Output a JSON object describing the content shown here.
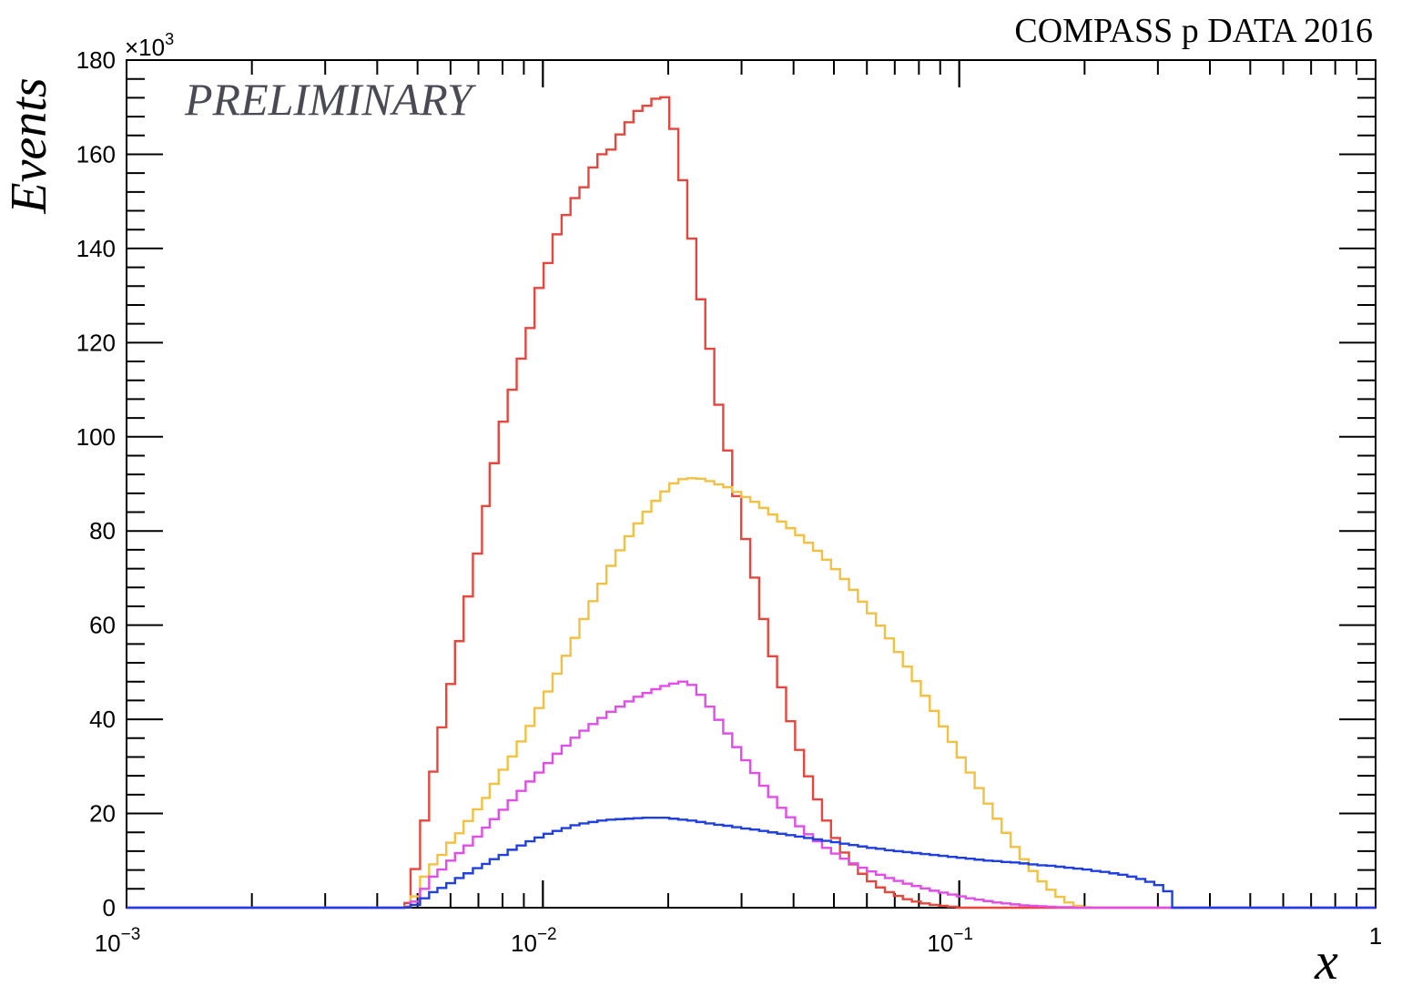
{
  "header": {
    "experiment_label": "COMPASS p DATA 2016",
    "preliminary_label": "PRELIMINARY"
  },
  "chart_data": {
    "type": "line",
    "title": "",
    "xlabel": "x",
    "ylabel": "Events",
    "y_multiplier_label": "×10",
    "y_multiplier_exponent": "3",
    "xscale": "log",
    "xlim": [
      0.001,
      1
    ],
    "ylim": [
      0,
      180
    ],
    "x_tick_labels": [
      {
        "x": 0.001,
        "base": "10",
        "exp": "−3"
      },
      {
        "x": 0.01,
        "base": "10",
        "exp": "−2"
      },
      {
        "x": 0.1,
        "base": "10",
        "exp": "−1"
      },
      {
        "x": 1,
        "base": "1",
        "exp": ""
      }
    ],
    "y_ticks": [
      0,
      20,
      40,
      60,
      80,
      100,
      120,
      140,
      160,
      180
    ],
    "legend": "none",
    "grid": false,
    "series": [
      {
        "color": "#e8453c",
        "x": [
          0.00465,
          0.00481,
          0.00507,
          0.00533,
          0.00558,
          0.00586,
          0.00615,
          0.00645,
          0.00679,
          0.00714,
          0.00745,
          0.00783,
          0.00823,
          0.00865,
          0.00909,
          0.00955,
          0.01004,
          0.01055,
          0.01109,
          0.01165,
          0.01224,
          0.01287,
          0.01352,
          0.01421,
          0.01494,
          0.0157,
          0.0165,
          0.01734,
          0.01822,
          0.01915,
          0.02012,
          0.02115,
          0.02222,
          0.02336,
          0.02455,
          0.0258,
          0.02711,
          0.02849,
          0.02994,
          0.03147,
          0.03307,
          0.03475,
          0.03652,
          0.03838,
          0.04034,
          0.04239,
          0.04455,
          0.04682,
          0.0492,
          0.05171,
          0.05434,
          0.0571,
          0.06001,
          0.06307,
          0.06628,
          0.06965,
          0.0732,
          0.07693,
          0.08085,
          0.08496,
          0.08929,
          0.09383,
          0.09861,
          0.10363,
          0.1089,
          0.11445,
          0.12027,
          0.12639,
          0.13283,
          0.13959,
          0.14669,
          0.15416,
          0.16201,
          0.17026,
          0.17892,
          0.18803,
          0.1976,
          0.20766,
          0.21823,
          0.22934,
          0.24101,
          0.25328,
          0.26617,
          0.27972,
          0.29396,
          0.30892,
          0.32465,
          0.34117,
          0.35854,
          0.37679,
          0.39597
        ],
        "values": [
          1.0,
          8.2,
          18.5,
          28.9,
          38.3,
          47.5,
          56.6,
          66.1,
          75.2,
          85.3,
          94.4,
          103.2,
          110.0,
          116.6,
          123.1,
          131.6,
          136.9,
          143.0,
          147.1,
          150.7,
          153.0,
          157.2,
          160.0,
          161.0,
          164.2,
          166.8,
          169.2,
          170.3,
          171.8,
          172.1,
          165.4,
          154.5,
          142.1,
          129.2,
          118.7,
          106.8,
          97.1,
          87.4,
          78.3,
          70.1,
          61.3,
          53.4,
          46.8,
          39.6,
          33.5,
          27.9,
          23.0,
          18.5,
          14.8,
          11.7,
          9.2,
          7.2,
          5.6,
          4.3,
          3.3,
          2.5,
          1.8,
          1.3,
          0.9,
          0.6,
          0.4,
          0.2,
          0.0,
          0.0,
          0.0,
          0.0,
          0.0,
          0.0,
          0.0,
          0.0,
          0.0,
          0.0,
          0.0,
          0.0,
          0.0,
          0.0,
          0.0,
          0.0,
          0.0,
          0.0,
          0.0,
          0.0,
          0.0,
          0.0,
          0.0,
          0.0,
          0.0,
          0.0,
          0.0,
          0.0,
          0.0
        ]
      },
      {
        "color": "#f4c042",
        "x": [
          0.00465,
          0.00481,
          0.00507,
          0.00533,
          0.00558,
          0.00586,
          0.00615,
          0.00645,
          0.00679,
          0.00714,
          0.00745,
          0.00783,
          0.00823,
          0.00865,
          0.00909,
          0.00955,
          0.01004,
          0.01055,
          0.01109,
          0.01165,
          0.01224,
          0.01287,
          0.01352,
          0.01421,
          0.01494,
          0.0157,
          0.0165,
          0.01734,
          0.01822,
          0.01915,
          0.02012,
          0.02115,
          0.02222,
          0.02336,
          0.02455,
          0.0258,
          0.02711,
          0.02849,
          0.02994,
          0.03147,
          0.03307,
          0.03475,
          0.03652,
          0.03838,
          0.04034,
          0.04239,
          0.04455,
          0.04682,
          0.0492,
          0.05171,
          0.05434,
          0.0571,
          0.06001,
          0.06307,
          0.06628,
          0.06965,
          0.0732,
          0.07693,
          0.08085,
          0.08496,
          0.08929,
          0.09383,
          0.09861,
          0.10363,
          0.1089,
          0.11445,
          0.12027,
          0.12639,
          0.13283,
          0.13959,
          0.14669,
          0.15416,
          0.16201,
          0.17026,
          0.17892,
          0.18803,
          0.1976,
          0.20766,
          0.21823,
          0.22934,
          0.24101,
          0.25328,
          0.26617,
          0.27972,
          0.29396,
          0.30892,
          0.32465,
          0.34117,
          0.35854,
          0.37679,
          0.39597
        ],
        "values": [
          0.3,
          2.4,
          6.6,
          9.2,
          11.2,
          13.8,
          15.8,
          18.4,
          20.9,
          23.3,
          26.3,
          29.3,
          32.1,
          35.3,
          38.6,
          42.4,
          45.9,
          49.7,
          53.5,
          57.3,
          61.3,
          65.1,
          68.8,
          72.6,
          75.9,
          78.9,
          81.6,
          84.1,
          86.4,
          88.4,
          90.1,
          91.0,
          91.2,
          91.1,
          90.6,
          89.9,
          89.3,
          88.3,
          87.2,
          86.2,
          84.9,
          83.5,
          82.0,
          80.6,
          79.1,
          77.5,
          75.8,
          73.9,
          71.9,
          69.8,
          67.5,
          65.0,
          62.5,
          59.9,
          57.2,
          54.3,
          51.2,
          48.1,
          45.0,
          41.8,
          38.5,
          35.2,
          31.9,
          28.7,
          25.4,
          22.1,
          18.9,
          15.9,
          12.9,
          10.3,
          7.8,
          5.6,
          3.8,
          2.3,
          1.1,
          0.4,
          0.1,
          0.0,
          0.0,
          0.0,
          0.0,
          0.0,
          0.0,
          0.0,
          0.0,
          0.0,
          0.0,
          0.0,
          0.0,
          0.0,
          0.0
        ]
      },
      {
        "color": "#e24ce8",
        "x": [
          0.00465,
          0.00481,
          0.00507,
          0.00533,
          0.00558,
          0.00586,
          0.00615,
          0.00645,
          0.00679,
          0.00714,
          0.00745,
          0.00783,
          0.00823,
          0.00865,
          0.00909,
          0.00955,
          0.01004,
          0.01055,
          0.01109,
          0.01165,
          0.01224,
          0.01287,
          0.01352,
          0.01421,
          0.01494,
          0.0157,
          0.0165,
          0.01734,
          0.01822,
          0.01915,
          0.02012,
          0.02115,
          0.02222,
          0.02336,
          0.02455,
          0.0258,
          0.02711,
          0.02849,
          0.02994,
          0.03147,
          0.03307,
          0.03475,
          0.03652,
          0.03838,
          0.04034,
          0.04239,
          0.04455,
          0.04682,
          0.0492,
          0.05171,
          0.05434,
          0.0571,
          0.06001,
          0.06307,
          0.06628,
          0.06965,
          0.0732,
          0.07693,
          0.08085,
          0.08496,
          0.08929,
          0.09383,
          0.09861,
          0.10363,
          0.1089,
          0.11445,
          0.12027,
          0.12639,
          0.13283,
          0.13959,
          0.14669,
          0.15416,
          0.16201,
          0.17026,
          0.17892,
          0.18803,
          0.1976,
          0.20766,
          0.21823,
          0.22934,
          0.24101,
          0.25328,
          0.26617,
          0.27972,
          0.29396,
          0.30892,
          0.32465,
          0.34117,
          0.35854,
          0.37679,
          0.39597
        ],
        "values": [
          0.1,
          1.3,
          4.0,
          6.6,
          8.1,
          10.0,
          11.6,
          13.2,
          15.1,
          17.0,
          18.8,
          20.8,
          22.8,
          24.8,
          26.8,
          28.7,
          30.7,
          32.7,
          34.4,
          36.1,
          37.6,
          39.0,
          40.3,
          41.6,
          42.7,
          43.8,
          44.8,
          45.6,
          46.4,
          47.1,
          47.6,
          48.0,
          47.3,
          45.2,
          42.7,
          39.9,
          37.0,
          34.1,
          31.3,
          28.6,
          25.9,
          23.5,
          21.2,
          19.2,
          17.3,
          15.6,
          14.1,
          12.7,
          11.5,
          10.4,
          9.4,
          8.5,
          7.7,
          7.0,
          6.3,
          5.7,
          5.1,
          4.6,
          4.1,
          3.6,
          3.2,
          2.8,
          2.4,
          2.0,
          1.7,
          1.4,
          1.1,
          0.9,
          0.7,
          0.5,
          0.4,
          0.3,
          0.2,
          0.1,
          0.1,
          0.0,
          0.0,
          0.0,
          0.0,
          0.0,
          0.0,
          0.0,
          0.0,
          0.0,
          0.0,
          0.0,
          0.0,
          0.0,
          0.0,
          0.0,
          0.0
        ]
      },
      {
        "color": "#1f3fe0",
        "x": [
          0.00465,
          0.00481,
          0.00507,
          0.00533,
          0.00558,
          0.00586,
          0.00615,
          0.00645,
          0.00679,
          0.00714,
          0.00745,
          0.00783,
          0.00823,
          0.00865,
          0.00909,
          0.00955,
          0.01004,
          0.01055,
          0.01109,
          0.01165,
          0.01224,
          0.01287,
          0.01352,
          0.01421,
          0.01494,
          0.0157,
          0.0165,
          0.01734,
          0.01822,
          0.01915,
          0.02012,
          0.02115,
          0.02222,
          0.02336,
          0.02455,
          0.0258,
          0.02711,
          0.02849,
          0.02994,
          0.03147,
          0.03307,
          0.03475,
          0.03652,
          0.03838,
          0.04034,
          0.04239,
          0.04455,
          0.04682,
          0.0492,
          0.05171,
          0.05434,
          0.0571,
          0.06001,
          0.06307,
          0.06628,
          0.06965,
          0.0732,
          0.07693,
          0.08085,
          0.08496,
          0.08929,
          0.09383,
          0.09861,
          0.10363,
          0.1089,
          0.11445,
          0.12027,
          0.12639,
          0.13283,
          0.13959,
          0.14669,
          0.15416,
          0.16201,
          0.17026,
          0.17892,
          0.18803,
          0.1976,
          0.20766,
          0.21823,
          0.22934,
          0.24101,
          0.25328,
          0.26617,
          0.27972,
          0.29396,
          0.30892,
          0.32465,
          0.34117,
          0.35854,
          0.37679,
          0.39597
        ],
        "values": [
          0.1,
          0.6,
          2.0,
          3.3,
          4.2,
          5.2,
          6.3,
          7.3,
          8.4,
          9.3,
          10.3,
          11.2,
          12.3,
          13.2,
          14.1,
          14.9,
          15.7,
          16.3,
          16.9,
          17.5,
          17.9,
          18.2,
          18.5,
          18.7,
          18.8,
          18.9,
          19.0,
          19.1,
          19.1,
          19.1,
          18.9,
          18.7,
          18.5,
          18.2,
          17.9,
          17.6,
          17.4,
          17.1,
          16.8,
          16.6,
          16.3,
          16.0,
          15.7,
          15.4,
          15.1,
          14.8,
          14.5,
          14.2,
          13.9,
          13.6,
          13.3,
          13.0,
          12.7,
          12.5,
          12.2,
          12.0,
          11.8,
          11.6,
          11.4,
          11.2,
          11.0,
          10.8,
          10.6,
          10.4,
          10.2,
          10.0,
          9.9,
          9.7,
          9.6,
          9.4,
          9.2,
          9.0,
          8.9,
          8.7,
          8.5,
          8.3,
          8.1,
          7.8,
          7.6,
          7.3,
          7.0,
          6.6,
          6.1,
          5.5,
          4.8,
          3.5,
          0.0,
          0.0,
          0.0,
          0.0,
          0.0
        ]
      }
    ]
  }
}
